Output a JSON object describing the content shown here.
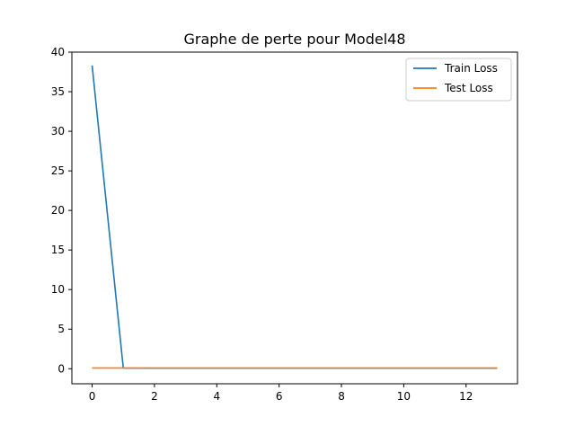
{
  "chart_data": {
    "type": "line",
    "title": "Graphe de perte pour Model48",
    "xlabel": "",
    "ylabel": "",
    "xlim": [
      -0.65,
      13.65
    ],
    "ylim": [
      -1.9,
      40
    ],
    "xticks": [
      0,
      2,
      4,
      6,
      8,
      10,
      12
    ],
    "yticks": [
      0,
      5,
      10,
      15,
      20,
      25,
      30,
      35,
      40
    ],
    "grid": false,
    "legend": "top-right",
    "x": [
      0,
      1,
      2,
      3,
      4,
      5,
      6,
      7,
      8,
      9,
      10,
      11,
      12,
      13
    ],
    "series": [
      {
        "name": "Train Loss",
        "color": "#1f77b4",
        "values": [
          38.3,
          0.08,
          0.07,
          0.07,
          0.07,
          0.07,
          0.07,
          0.07,
          0.07,
          0.07,
          0.07,
          0.07,
          0.07,
          0.07
        ]
      },
      {
        "name": "Test Loss",
        "color": "#ff7f0e",
        "values": [
          0.1,
          0.09,
          0.09,
          0.09,
          0.09,
          0.09,
          0.09,
          0.09,
          0.09,
          0.09,
          0.09,
          0.09,
          0.09,
          0.09
        ]
      }
    ]
  }
}
